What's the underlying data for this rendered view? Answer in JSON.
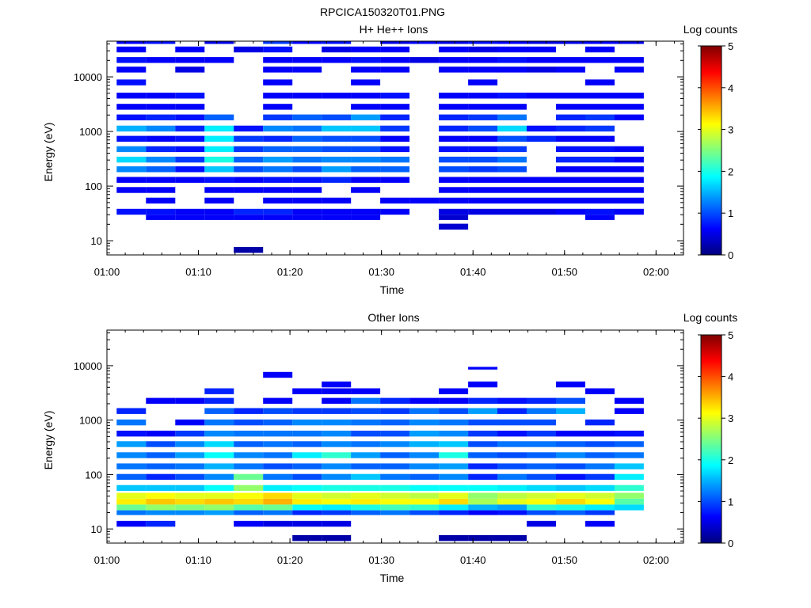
{
  "figure_title": "RPCICA150320T01.PNG",
  "colorbar_colors": [
    "#00007f",
    "#0000ff",
    "#007fff",
    "#00ffff",
    "#7fff7f",
    "#ffff00",
    "#ff7f00",
    "#ff0000",
    "#7f0000"
  ],
  "chart_data": [
    {
      "type": "heatmap",
      "title": "H+ He++ Ions",
      "xlabel": "Time",
      "ylabel": "Energy (eV)",
      "colorbar_label": "Log counts",
      "x_ticks": [
        "01:00",
        "01:10",
        "01:20",
        "01:30",
        "01:40",
        "01:50",
        "02:00"
      ],
      "y_ticks": [
        "10",
        "100",
        "1000",
        "10000"
      ],
      "colorbar_ticks": [
        "0",
        "1",
        "2",
        "3",
        "4",
        "5"
      ],
      "y_scale": "log",
      "ylim": [
        5.5,
        45000
      ],
      "xlim": [
        "01:00",
        "02:03"
      ],
      "zlim": [
        0,
        5
      ],
      "time_bins": [
        "01:02:40",
        "01:05:52",
        "01:09:04",
        "01:12:16",
        "01:15:28",
        "01:18:40",
        "01:21:52",
        "01:25:04",
        "01:28:16",
        "01:31:28",
        "01:34:40",
        "01:37:52",
        "01:41:04",
        "01:44:16",
        "01:47:28",
        "01:50:40",
        "01:53:52",
        "01:57:04"
      ],
      "bin_width_minutes": 3.2,
      "energy_band_note": "rows: energy bin lower edge in eV, values per time bin are log10 counts (null = no data)",
      "rows": [
        {
          "e": 40000,
          "v": [
            0.6,
            0.7,
            null,
            0.5,
            null,
            0.9,
            0.6,
            0.7,
            null,
            0.5,
            0.6,
            0.5,
            0.7,
            0.6,
            0.5,
            0.5,
            0.6,
            0.5
          ]
        },
        {
          "e": 28000,
          "v": [
            0.6,
            null,
            0.6,
            null,
            0.5,
            0.7,
            null,
            0.5,
            0.6,
            0.6,
            null,
            0.6,
            0.5,
            0.6,
            0.6,
            null,
            0.6,
            null
          ]
        },
        {
          "e": 18000,
          "v": [
            0.7,
            0.6,
            0.6,
            0.6,
            null,
            0.6,
            0.6,
            0.6,
            0.7,
            0.6,
            0.5,
            0.6,
            0.6,
            0.7,
            0.6,
            0.6,
            0.6,
            0.6
          ]
        },
        {
          "e": 12000,
          "v": [
            0.6,
            null,
            0.5,
            null,
            null,
            0.6,
            0.6,
            null,
            0.6,
            0.6,
            null,
            0.6,
            0.6,
            0.6,
            0.5,
            0.6,
            null,
            0.6
          ]
        },
        {
          "e": 7000,
          "v": [
            0.7,
            null,
            null,
            null,
            null,
            0.6,
            null,
            null,
            0.6,
            null,
            null,
            null,
            0.6,
            null,
            null,
            null,
            0.6,
            null
          ]
        },
        {
          "e": 4000,
          "v": [
            0.6,
            0.6,
            0.7,
            null,
            null,
            0.6,
            0.6,
            0.6,
            0.6,
            0.7,
            null,
            0.6,
            0.6,
            0.7,
            0.6,
            0.6,
            0.6,
            0.6
          ]
        },
        {
          "e": 2500,
          "v": [
            0.6,
            0.6,
            0.6,
            null,
            null,
            0.6,
            null,
            null,
            0.6,
            0.6,
            null,
            0.6,
            0.6,
            0.6,
            null,
            0.6,
            0.6,
            0.6
          ]
        },
        {
          "e": 1600,
          "v": [
            0.7,
            0.8,
            0.7,
            1.1,
            null,
            0.9,
            1.1,
            1.0,
            1.4,
            0.8,
            null,
            0.8,
            0.9,
            1.2,
            null,
            0.8,
            0.9,
            0.6
          ]
        },
        {
          "e": 1000,
          "v": [
            1.5,
            1.3,
            0.8,
            1.8,
            0.7,
            1.3,
            1.2,
            1.6,
            1.6,
            0.9,
            null,
            0.8,
            1.0,
            1.7,
            0.7,
            0.8,
            0.9,
            null
          ]
        },
        {
          "e": 650,
          "v": [
            0.7,
            0.6,
            0.7,
            1.8,
            0.9,
            0.8,
            1.1,
            1.0,
            1.0,
            0.6,
            null,
            0.6,
            0.6,
            1.0,
            0.8,
            0.6,
            0.6,
            null
          ]
        },
        {
          "e": 420,
          "v": [
            1.3,
            0.8,
            0.7,
            1.8,
            0.9,
            1.1,
            1.1,
            1.0,
            1.0,
            0.7,
            null,
            0.7,
            0.7,
            0.9,
            null,
            0.7,
            0.7,
            0.6
          ]
        },
        {
          "e": 270,
          "v": [
            1.7,
            1.3,
            0.9,
            2.0,
            1.1,
            1.4,
            1.2,
            1.3,
            1.3,
            1.2,
            null,
            1.0,
            1.0,
            1.2,
            null,
            0.8,
            0.8,
            0.6
          ]
        },
        {
          "e": 180,
          "v": [
            1.3,
            1.1,
            0.7,
            1.6,
            1.0,
            1.2,
            1.0,
            1.4,
            1.1,
            1.1,
            null,
            1.0,
            0.9,
            1.0,
            null,
            0.6,
            0.6,
            0.6
          ]
        },
        {
          "e": 115,
          "v": [
            0.6,
            0.6,
            0.6,
            0.7,
            0.6,
            0.7,
            0.7,
            0.8,
            0.6,
            0.6,
            null,
            0.6,
            0.6,
            0.6,
            0.6,
            0.6,
            0.6,
            0.6
          ]
        },
        {
          "e": 75,
          "v": [
            0.6,
            0.6,
            null,
            0.6,
            0.6,
            0.6,
            0.6,
            null,
            0.6,
            null,
            null,
            0.6,
            0.6,
            0.6,
            0.6,
            0.6,
            0.6,
            0.6
          ]
        },
        {
          "e": 48,
          "v": [
            null,
            0.6,
            null,
            0.6,
            null,
            0.6,
            0.6,
            0.6,
            null,
            0.6,
            0.6,
            0.6,
            0.6,
            0.6,
            0.6,
            0.6,
            0.6,
            0.6
          ]
        },
        {
          "e": 30,
          "v": [
            0.7,
            0.7,
            0.6,
            0.6,
            0.8,
            0.8,
            0.6,
            0.6,
            0.6,
            0.6,
            null,
            0.5,
            0.5,
            0.5,
            0.5,
            0.6,
            0.7,
            0.6
          ]
        },
        {
          "e": 24,
          "v": [
            null,
            0.6,
            0.6,
            0.6,
            0.6,
            0.6,
            0.6,
            0.6,
            0.6,
            null,
            null,
            0.4,
            null,
            null,
            null,
            null,
            0.6,
            null
          ]
        },
        {
          "e": 16,
          "v": [
            null,
            null,
            null,
            null,
            null,
            null,
            null,
            null,
            null,
            null,
            null,
            0.4,
            null,
            null,
            null,
            null,
            null,
            null
          ]
        },
        {
          "e": 6,
          "v": [
            null,
            null,
            null,
            null,
            0.2,
            null,
            null,
            null,
            null,
            null,
            null,
            null,
            null,
            null,
            null,
            null,
            null,
            null
          ]
        }
      ]
    },
    {
      "type": "heatmap",
      "title": "Other Ions",
      "xlabel": "Time",
      "ylabel": "Energy (eV)",
      "colorbar_label": "Log counts",
      "x_ticks": [
        "01:00",
        "01:10",
        "01:20",
        "01:30",
        "01:40",
        "01:50",
        "02:00"
      ],
      "y_ticks": [
        "10",
        "100",
        "1000",
        "10000"
      ],
      "colorbar_ticks": [
        "0",
        "1",
        "2",
        "3",
        "4",
        "5"
      ],
      "y_scale": "log",
      "ylim": [
        5.5,
        45000
      ],
      "xlim": [
        "01:00",
        "02:03"
      ],
      "zlim": [
        0,
        5
      ],
      "time_bins": [
        "01:02:40",
        "01:05:52",
        "01:09:04",
        "01:12:16",
        "01:15:28",
        "01:18:40",
        "01:21:52",
        "01:25:04",
        "01:28:16",
        "01:31:28",
        "01:34:40",
        "01:37:52",
        "01:41:04",
        "01:44:16",
        "01:47:28",
        "01:50:40",
        "01:53:52",
        "01:57:04"
      ],
      "bin_width_minutes": 3.2,
      "energy_band_note": "rows: energy bin lower edge in eV, values per time bin are log10 counts (null = no data)",
      "rows": [
        {
          "e": 8500,
          "v": [
            null,
            null,
            null,
            null,
            null,
            null,
            null,
            null,
            null,
            null,
            null,
            null,
            0.6,
            null,
            null,
            null,
            null,
            null
          ]
        },
        {
          "e": 6000,
          "v": [
            null,
            null,
            null,
            null,
            null,
            0.6,
            null,
            null,
            null,
            null,
            null,
            null,
            null,
            null,
            null,
            null,
            null,
            null
          ]
        },
        {
          "e": 4000,
          "v": [
            null,
            null,
            null,
            null,
            null,
            null,
            null,
            0.6,
            null,
            null,
            null,
            null,
            0.6,
            null,
            null,
            0.6,
            null,
            null
          ]
        },
        {
          "e": 3000,
          "v": [
            null,
            null,
            null,
            0.8,
            null,
            null,
            0.6,
            0.6,
            0.6,
            null,
            null,
            0.6,
            null,
            null,
            null,
            null,
            0.6,
            null
          ]
        },
        {
          "e": 2000,
          "v": [
            null,
            0.6,
            0.6,
            0.8,
            null,
            0.6,
            null,
            0.6,
            1.2,
            0.8,
            0.6,
            0.6,
            0.8,
            0.7,
            0.8,
            1.0,
            null,
            0.6
          ]
        },
        {
          "e": 1300,
          "v": [
            0.8,
            null,
            null,
            1.1,
            0.8,
            1.0,
            0.9,
            0.9,
            1.0,
            0.9,
            1.2,
            1.0,
            1.4,
            0.8,
            1.2,
            1.5,
            null,
            0.6
          ]
        },
        {
          "e": 800,
          "v": [
            1.2,
            null,
            0.6,
            1.2,
            1.0,
            1.1,
            1.3,
            1.3,
            1.2,
            1.1,
            1.3,
            1.2,
            1.0,
            1.0,
            1.0,
            null,
            0.8,
            null
          ]
        },
        {
          "e": 500,
          "v": [
            0.7,
            0.6,
            0.9,
            1.3,
            1.2,
            1.2,
            1.2,
            1.3,
            1.0,
            1.0,
            1.4,
            1.3,
            0.9,
            0.7,
            0.9,
            0.6,
            0.6,
            0.7
          ]
        },
        {
          "e": 320,
          "v": [
            1.4,
            1.0,
            1.3,
            1.7,
            1.1,
            1.2,
            1.1,
            1.3,
            1.2,
            1.3,
            1.5,
            1.6,
            1.0,
            1.2,
            1.2,
            1.1,
            1.0,
            1.1
          ]
        },
        {
          "e": 200,
          "v": [
            1.3,
            1.1,
            1.4,
            1.9,
            1.3,
            1.2,
            1.8,
            2.1,
            1.4,
            1.1,
            1.3,
            2.0,
            1.1,
            1.0,
            1.1,
            1.3,
            1.1,
            1.2
          ]
        },
        {
          "e": 125,
          "v": [
            1.2,
            1.1,
            1.2,
            1.5,
            1.2,
            1.0,
            1.1,
            1.3,
            1.1,
            1.1,
            1.3,
            1.4,
            0.8,
            1.0,
            1.1,
            1.0,
            1.2,
            1.6
          ]
        },
        {
          "e": 80,
          "v": [
            1.1,
            0.8,
            1.0,
            1.3,
            2.4,
            1.2,
            1.0,
            1.3,
            1.6,
            1.2,
            1.1,
            1.3,
            0.8,
            1.2,
            1.0,
            0.7,
            0.9,
            1.8
          ]
        },
        {
          "e": 50,
          "v": [
            1.6,
            1.6,
            1.6,
            1.9,
            2.6,
            1.8,
            1.9,
            2.0,
            2.0,
            2.0,
            1.9,
            1.9,
            1.9,
            1.8,
            1.7,
            1.6,
            1.7,
            2.1
          ]
        },
        {
          "e": 36,
          "v": [
            3.0,
            3.1,
            3.0,
            3.0,
            3.1,
            3.3,
            3.0,
            2.9,
            3.0,
            2.9,
            2.8,
            3.0,
            2.6,
            2.8,
            2.9,
            3.0,
            2.9,
            2.6
          ]
        },
        {
          "e": 28,
          "v": [
            3.2,
            3.4,
            3.3,
            3.4,
            3.3,
            3.5,
            3.2,
            3.1,
            3.2,
            3.1,
            3.1,
            3.3,
            2.7,
            3.0,
            3.1,
            3.3,
            3.1,
            2.3
          ]
        },
        {
          "e": 22,
          "v": [
            2.4,
            2.6,
            2.5,
            2.6,
            2.3,
            2.4,
            1.9,
            1.8,
            2.0,
            2.2,
            2.1,
            1.8,
            1.5,
            1.4,
            2.1,
            2.0,
            1.8,
            1.7
          ]
        },
        {
          "e": 18,
          "v": [
            1.2,
            1.3,
            1.3,
            1.4,
            1.1,
            1.2,
            0.8,
            0.9,
            1.1,
            1.2,
            1.0,
            0.8,
            0.6,
            0.7,
            1.0,
            1.1,
            0.9,
            null
          ]
        },
        {
          "e": 11,
          "v": [
            0.6,
            0.8,
            null,
            null,
            0.6,
            0.5,
            0.5,
            0.5,
            null,
            null,
            null,
            null,
            null,
            null,
            0.5,
            null,
            0.6,
            null
          ]
        },
        {
          "e": 6,
          "v": [
            null,
            null,
            null,
            null,
            null,
            null,
            0.2,
            0.2,
            null,
            null,
            null,
            0.2,
            0.2,
            0.2,
            null,
            null,
            null,
            null
          ]
        }
      ]
    }
  ]
}
